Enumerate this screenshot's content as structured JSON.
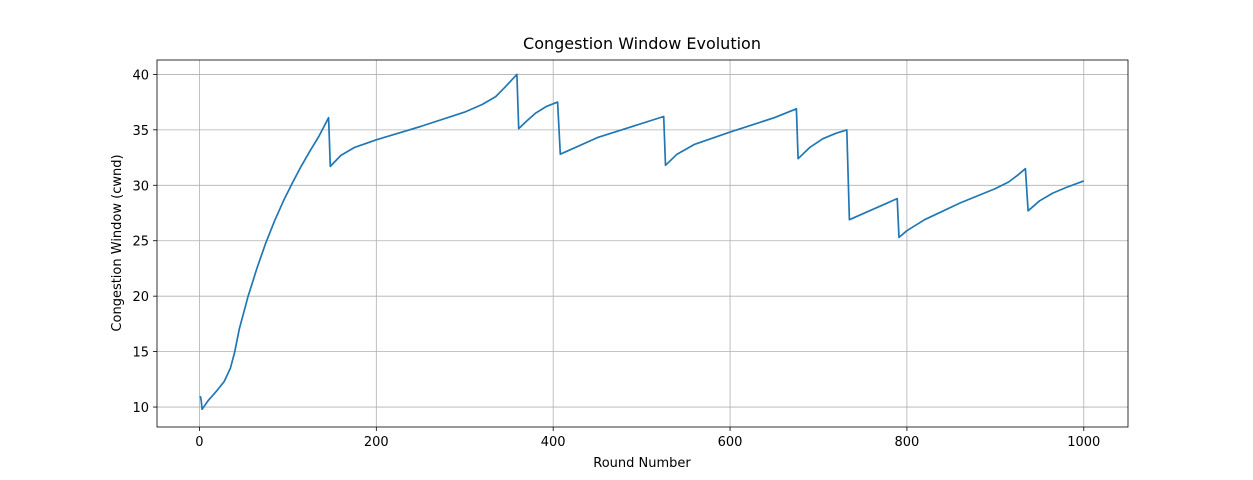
{
  "chart_data": {
    "type": "line",
    "title": "Congestion Window Evolution",
    "xlabel": "Round Number",
    "ylabel": "Congestion Window (cwnd)",
    "xlim": [
      -48,
      1050
    ],
    "ylim": [
      8.2,
      41.3
    ],
    "xticks": [
      0,
      200,
      400,
      600,
      800,
      1000
    ],
    "yticks": [
      10,
      15,
      20,
      25,
      30,
      35,
      40
    ],
    "grid": true,
    "legend": "none",
    "series": [
      {
        "color": "#1f77b4",
        "points": [
          [
            1,
            11.0
          ],
          [
            2,
            10.6
          ],
          [
            3,
            9.8
          ],
          [
            10,
            10.6
          ],
          [
            20,
            11.5
          ],
          [
            28,
            12.3
          ],
          [
            35,
            13.5
          ],
          [
            40,
            15.0
          ],
          [
            45,
            17.0
          ],
          [
            55,
            20.0
          ],
          [
            65,
            22.5
          ],
          [
            75,
            24.8
          ],
          [
            85,
            26.8
          ],
          [
            95,
            28.6
          ],
          [
            105,
            30.2
          ],
          [
            115,
            31.7
          ],
          [
            125,
            33.1
          ],
          [
            135,
            34.4
          ],
          [
            146,
            36.1
          ],
          [
            148,
            31.7
          ],
          [
            160,
            32.7
          ],
          [
            175,
            33.4
          ],
          [
            200,
            34.1
          ],
          [
            250,
            35.3
          ],
          [
            300,
            36.6
          ],
          [
            320,
            37.3
          ],
          [
            335,
            38.0
          ],
          [
            345,
            38.8
          ],
          [
            352,
            39.4
          ],
          [
            359,
            40.0
          ],
          [
            361,
            35.1
          ],
          [
            370,
            35.8
          ],
          [
            380,
            36.5
          ],
          [
            392,
            37.1
          ],
          [
            405,
            37.5
          ],
          [
            408,
            32.8
          ],
          [
            450,
            34.3
          ],
          [
            525,
            36.2
          ],
          [
            527,
            31.8
          ],
          [
            540,
            32.8
          ],
          [
            560,
            33.7
          ],
          [
            600,
            34.8
          ],
          [
            650,
            36.1
          ],
          [
            675,
            36.9
          ],
          [
            677,
            32.4
          ],
          [
            690,
            33.4
          ],
          [
            705,
            34.2
          ],
          [
            720,
            34.7
          ],
          [
            732,
            35.0
          ],
          [
            735,
            26.9
          ],
          [
            789,
            28.8
          ],
          [
            791,
            25.3
          ],
          [
            800,
            25.9
          ],
          [
            820,
            26.9
          ],
          [
            860,
            28.4
          ],
          [
            900,
            29.7
          ],
          [
            915,
            30.3
          ],
          [
            925,
            30.9
          ],
          [
            934,
            31.5
          ],
          [
            937,
            27.7
          ],
          [
            950,
            28.6
          ],
          [
            965,
            29.3
          ],
          [
            980,
            29.8
          ],
          [
            1000,
            30.4
          ]
        ]
      }
    ]
  }
}
